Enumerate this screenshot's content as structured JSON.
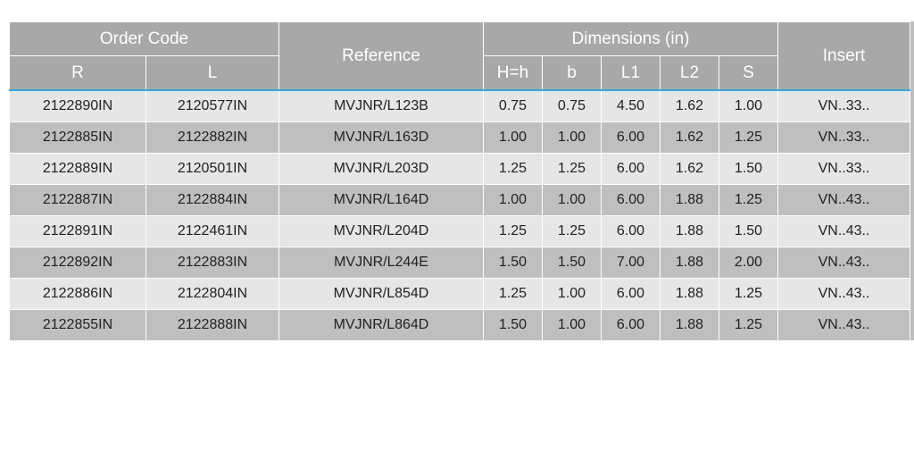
{
  "table": {
    "header": {
      "order_code": "Order Code",
      "r": "R",
      "l": "L",
      "reference": "Reference",
      "dimensions": "Dimensions (in)",
      "hh": "H=h",
      "b": "b",
      "l1": "L1",
      "l2": "L2",
      "s": "S",
      "insert": "Insert"
    },
    "rows": [
      [
        "2122890IN",
        "2120577IN",
        "MVJNR/L123B",
        "0.75",
        "0.75",
        "4.50",
        "1.62",
        "1.00",
        "VN..33.."
      ],
      [
        "2122885IN",
        "2122882IN",
        "MVJNR/L163D",
        "1.00",
        "1.00",
        "6.00",
        "1.62",
        "1.25",
        "VN..33.."
      ],
      [
        "2122889IN",
        "2120501IN",
        "MVJNR/L203D",
        "1.25",
        "1.25",
        "6.00",
        "1.62",
        "1.50",
        "VN..33.."
      ],
      [
        "2122887IN",
        "2122884IN",
        "MVJNR/L164D",
        "1.00",
        "1.00",
        "6.00",
        "1.88",
        "1.25",
        "VN..43.."
      ],
      [
        "2122891IN",
        "2122461IN",
        "MVJNR/L204D",
        "1.25",
        "1.25",
        "6.00",
        "1.88",
        "1.50",
        "VN..43.."
      ],
      [
        "2122892IN",
        "2122883IN",
        "MVJNR/L244E",
        "1.50",
        "1.50",
        "7.00",
        "1.88",
        "2.00",
        "VN..43.."
      ],
      [
        "2122886IN",
        "2122804IN",
        "MVJNR/L854D",
        "1.25",
        "1.00",
        "6.00",
        "1.88",
        "1.25",
        "VN..43.."
      ],
      [
        "2122855IN",
        "2122888IN",
        "MVJNR/L864D",
        "1.50",
        "1.00",
        "6.00",
        "1.88",
        "1.25",
        "VN..43.."
      ]
    ]
  }
}
